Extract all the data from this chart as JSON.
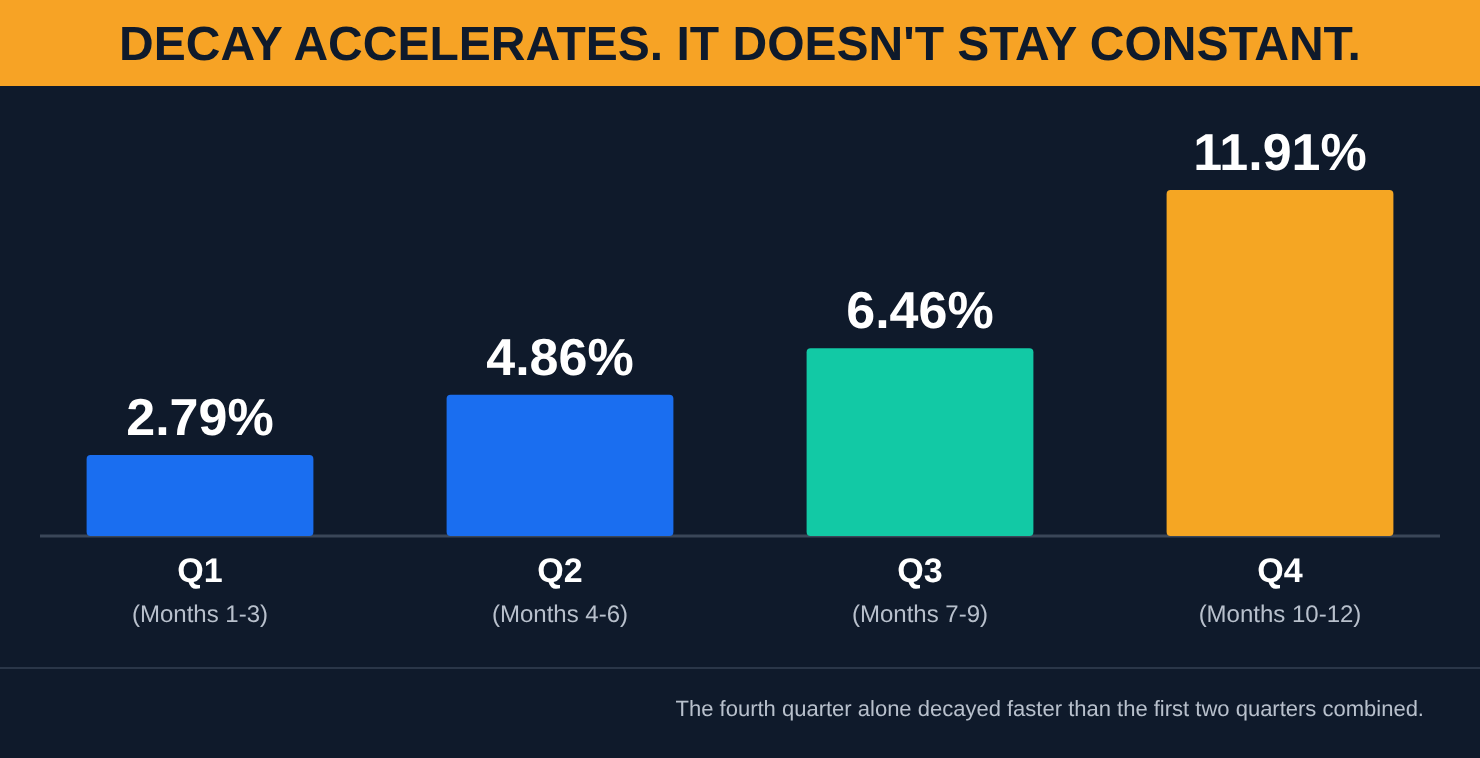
{
  "chart_data": {
    "type": "bar",
    "title": "DECAY ACCELERATES. IT DOESN'T STAY CONSTANT.",
    "categories": [
      "Q1\n(Months 1-3)",
      "Q2\n(Months 4-6)",
      "Q3\n(Months 7-9)",
      "Q4\n(Months 10-12)"
    ],
    "values": [
      2.79,
      4.86,
      6.46,
      11.91
    ],
    "colors": [
      "#1a6ef0",
      "#1a6ef0",
      "#12c9a5",
      "#f5a623"
    ],
    "data_labels": true,
    "value_labels": [
      "2.79%",
      "4.86%",
      "6.46%",
      "11.91%"
    ],
    "annotations": [
      "The fourth quarter alone decayed faster than the first two quarters combined."
    ]
  }
}
